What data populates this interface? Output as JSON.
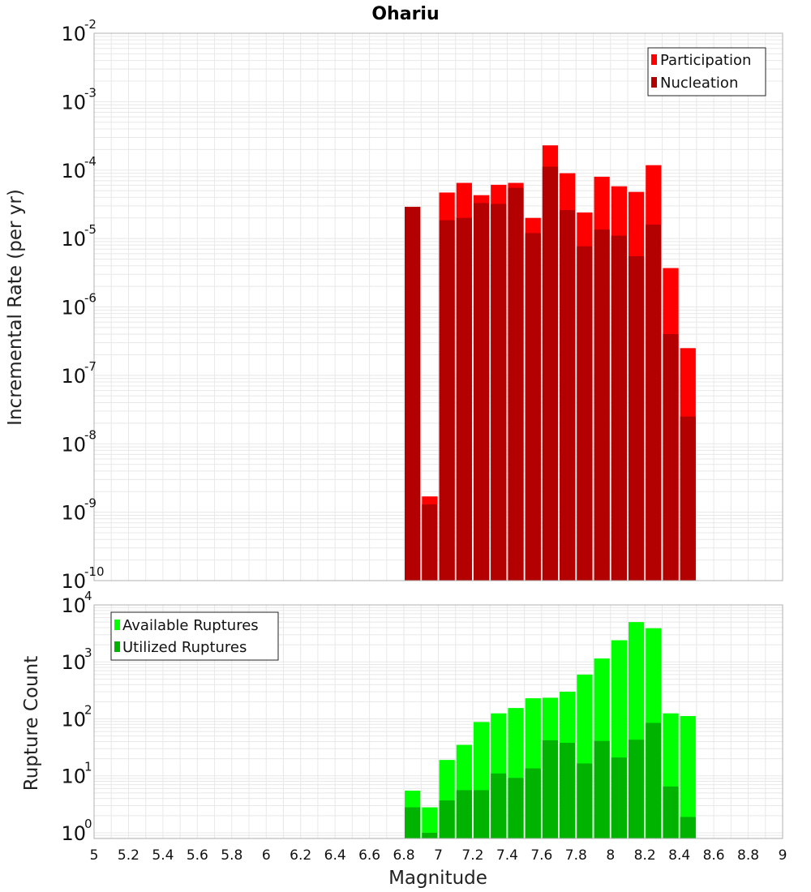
{
  "title": "Ohariu",
  "xlabel": "Magnitude",
  "x_ticks": [
    "5",
    "5.2",
    "5.4",
    "5.6",
    "5.8",
    "6",
    "6.2",
    "6.4",
    "6.6",
    "6.8",
    "7",
    "7.2",
    "7.4",
    "7.6",
    "7.8",
    "8",
    "8.2",
    "8.4",
    "8.6",
    "8.8",
    "9"
  ],
  "colors": {
    "participation": "#ff0000",
    "nucleation": "#b30000",
    "available": "#00ff00",
    "utilized": "#00b300",
    "grid": "#e8e8e8",
    "frame": "#b0b0b0"
  },
  "chart_data": [
    {
      "type": "bar",
      "ylabel": "Incremental Rate (per yr)",
      "yscale": "log",
      "xlim": [
        5,
        9
      ],
      "ylim_exp": [
        -10,
        -2
      ],
      "y_ticks": [
        {
          "base": "10",
          "exp": "-2"
        },
        {
          "base": "10",
          "exp": "-3"
        },
        {
          "base": "10",
          "exp": "-4"
        },
        {
          "base": "10",
          "exp": "-5"
        },
        {
          "base": "10",
          "exp": "-6"
        },
        {
          "base": "10",
          "exp": "-7"
        },
        {
          "base": "10",
          "exp": "-8"
        },
        {
          "base": "10",
          "exp": "-9"
        },
        {
          "base": "10",
          "exp": "-10"
        }
      ],
      "legend": {
        "position": "top-right",
        "entries": [
          "Participation",
          "Nucleation"
        ]
      },
      "grid": true,
      "x": [
        6.85,
        6.95,
        7.05,
        7.15,
        7.25,
        7.35,
        7.45,
        7.55,
        7.65,
        7.75,
        7.85,
        7.95,
        8.05,
        8.15,
        8.25,
        8.35,
        8.45
      ],
      "series": [
        {
          "name": "Participation",
          "values": [
            2.9e-05,
            1.7e-09,
            4.7e-05,
            6.5e-05,
            4.3e-05,
            6.1e-05,
            6.5e-05,
            2e-05,
            0.00023,
            9e-05,
            2.4e-05,
            8e-05,
            5.8e-05,
            4.8e-05,
            0.000118,
            3.7e-06,
            2.5e-07
          ]
        },
        {
          "name": "Nucleation",
          "values": [
            2.9e-05,
            1.3e-09,
            1.85e-05,
            2e-05,
            3.3e-05,
            3.2e-05,
            5.5e-05,
            1.2e-05,
            0.000112,
            2.6e-05,
            7.7e-06,
            1.35e-05,
            1.1e-05,
            5.5e-06,
            1.6e-05,
            4e-07,
            2.5e-08
          ]
        }
      ]
    },
    {
      "type": "bar",
      "ylabel": "Rupture Count",
      "yscale": "log",
      "xlim": [
        5,
        9
      ],
      "ylim_exp": [
        -0.1,
        4
      ],
      "y_ticks": [
        {
          "base": "10",
          "exp": "4"
        },
        {
          "base": "10",
          "exp": "3"
        },
        {
          "base": "10",
          "exp": "2"
        },
        {
          "base": "10",
          "exp": "1"
        },
        {
          "base": "10",
          "exp": "0"
        }
      ],
      "legend": {
        "position": "top-left",
        "entries": [
          "Available Ruptures",
          "Utilized Ruptures"
        ]
      },
      "grid": true,
      "x": [
        6.85,
        6.95,
        7.05,
        7.15,
        7.25,
        7.35,
        7.45,
        7.55,
        7.65,
        7.75,
        7.85,
        7.95,
        8.05,
        8.15,
        8.25,
        8.35,
        8.45
      ],
      "series": [
        {
          "name": "Available Ruptures",
          "values": [
            5.5,
            2.8,
            19,
            35,
            88,
            125,
            155,
            230,
            235,
            300,
            600,
            1150,
            2400,
            5000,
            3900,
            125,
            112
          ]
        },
        {
          "name": "Utilized Ruptures",
          "values": [
            2.8,
            1.0,
            3.7,
            5.6,
            5.6,
            11,
            9.2,
            13.5,
            42,
            38,
            16.5,
            41,
            21,
            43,
            85,
            6.5,
            1.9
          ]
        }
      ]
    }
  ]
}
